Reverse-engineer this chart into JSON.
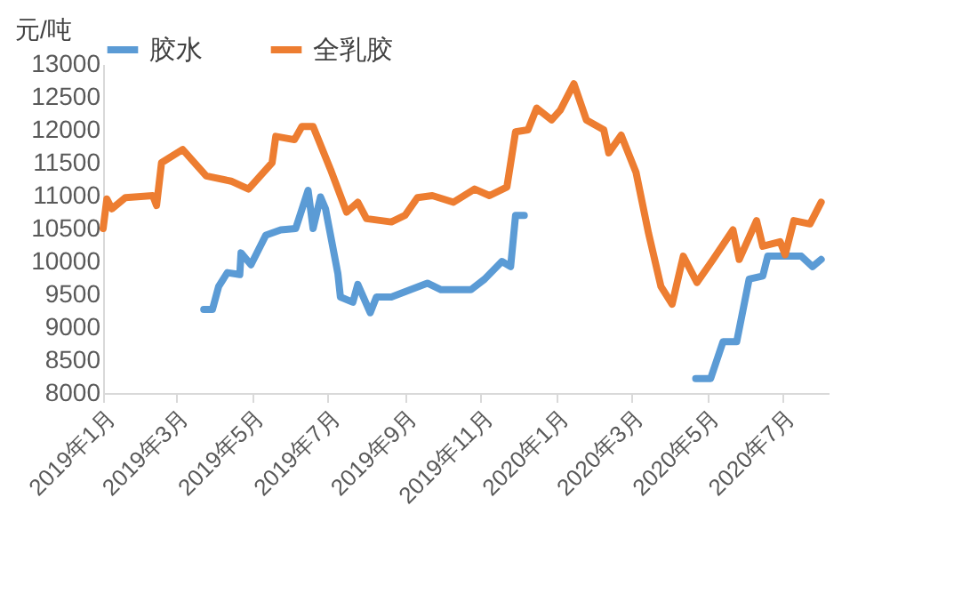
{
  "chart_data": {
    "type": "line",
    "ylabel": "元/吨",
    "legend": "top",
    "grid": false,
    "line_style": "solid",
    "marker": "none",
    "xlim": [
      "2019-01-01",
      "2020-08-07"
    ],
    "xticks": [
      {
        "value": "2019-01",
        "label": "2019年1月"
      },
      {
        "value": "2019-03",
        "label": "2019年3月"
      },
      {
        "value": "2019-05",
        "label": "2019年5月"
      },
      {
        "value": "2019-07",
        "label": "2019年7月"
      },
      {
        "value": "2019-09",
        "label": "2019年9月"
      },
      {
        "value": "2019-11",
        "label": "2019年11月"
      },
      {
        "value": "2020-01",
        "label": "2020年1月"
      },
      {
        "value": "2020-03",
        "label": "2020年3月"
      },
      {
        "value": "2020-05",
        "label": "2020年5月"
      },
      {
        "value": "2020-07",
        "label": "2020年7月"
      }
    ],
    "ylim": [
      8000,
      13000
    ],
    "yticks": [
      8000,
      8500,
      9000,
      9500,
      10000,
      10500,
      11000,
      11500,
      12000,
      12500,
      13000
    ],
    "series": [
      {
        "name": "胶水",
        "color": "#5b9bd5",
        "x": [
          "2019-03-23",
          "2019-03-30",
          "2019-04-04",
          "2019-04-11",
          "2019-04-21",
          "2019-04-22",
          "2019-04-30",
          "2019-05-12",
          "2019-05-24",
          "2019-06-05",
          "2019-06-15",
          "2019-06-19",
          "2019-06-25",
          "2019-06-29",
          "2019-07-09",
          "2019-07-11",
          "2019-07-21",
          "2019-07-25",
          "2019-08-04",
          "2019-08-09",
          "2019-08-21",
          "2019-09-04",
          "2019-09-19",
          "2019-09-30",
          "2019-10-24",
          "2019-11-04",
          "2019-11-18",
          "2019-11-25",
          "2019-11-29",
          "2019-12-06",
          "2020-02-15",
          "2020-04-22",
          "2020-05-04",
          "2020-05-14",
          "2020-05-25",
          "2020-06-04",
          "2020-06-15",
          "2020-06-19",
          "2020-07-16",
          "2020-07-25",
          "2020-08-01"
        ],
        "values": [
          9270,
          9270,
          9620,
          9830,
          9800,
          10130,
          9950,
          10400,
          10480,
          10500,
          11080,
          10500,
          10980,
          10800,
          9810,
          9460,
          9380,
          9650,
          9220,
          9460,
          9460,
          9560,
          9670,
          9570,
          9570,
          9730,
          10000,
          9920,
          10700,
          10700,
          null,
          8220,
          8220,
          8780,
          8780,
          9730,
          9780,
          10080,
          10080,
          9920,
          10030
        ]
      },
      {
        "name": "全乳胶",
        "color": "#ed7d31",
        "x": [
          "2019-01-01",
          "2019-01-04",
          "2019-01-08",
          "2019-01-19",
          "2019-02-10",
          "2019-02-13",
          "2019-02-17",
          "2019-03-06",
          "2019-03-25",
          "2019-04-14",
          "2019-04-28",
          "2019-05-17",
          "2019-05-20",
          "2019-06-04",
          "2019-06-10",
          "2019-06-19",
          "2019-07-03",
          "2019-07-16",
          "2019-07-25",
          "2019-08-01",
          "2019-08-21",
          "2019-09-01",
          "2019-09-11",
          "2019-09-23",
          "2019-10-10",
          "2019-10-27",
          "2019-11-08",
          "2019-11-22",
          "2019-11-29",
          "2019-12-09",
          "2019-12-16",
          "2019-12-28",
          "2020-01-04",
          "2020-01-15",
          "2020-01-25",
          "2020-02-08",
          "2020-02-12",
          "2020-02-22",
          "2020-03-05",
          "2020-03-15",
          "2020-03-25",
          "2020-04-03",
          "2020-04-12",
          "2020-04-23",
          "2020-05-06",
          "2020-05-22",
          "2020-05-27",
          "2020-06-10",
          "2020-06-15",
          "2020-06-29",
          "2020-07-03",
          "2020-07-10",
          "2020-07-23",
          "2020-08-01"
        ],
        "values": [
          10500,
          10950,
          10800,
          10970,
          11000,
          10850,
          11500,
          11700,
          11300,
          11220,
          11100,
          11500,
          11900,
          11850,
          12050,
          12050,
          11400,
          10750,
          10900,
          10650,
          10600,
          10700,
          10970,
          11000,
          10900,
          11100,
          11000,
          11130,
          11970,
          12000,
          12330,
          12150,
          12300,
          12700,
          12150,
          12000,
          11650,
          11920,
          11350,
          10430,
          9620,
          9350,
          10080,
          9680,
          10030,
          10480,
          10030,
          10620,
          10230,
          10300,
          10100,
          10620,
          10570,
          10900
        ]
      }
    ]
  }
}
